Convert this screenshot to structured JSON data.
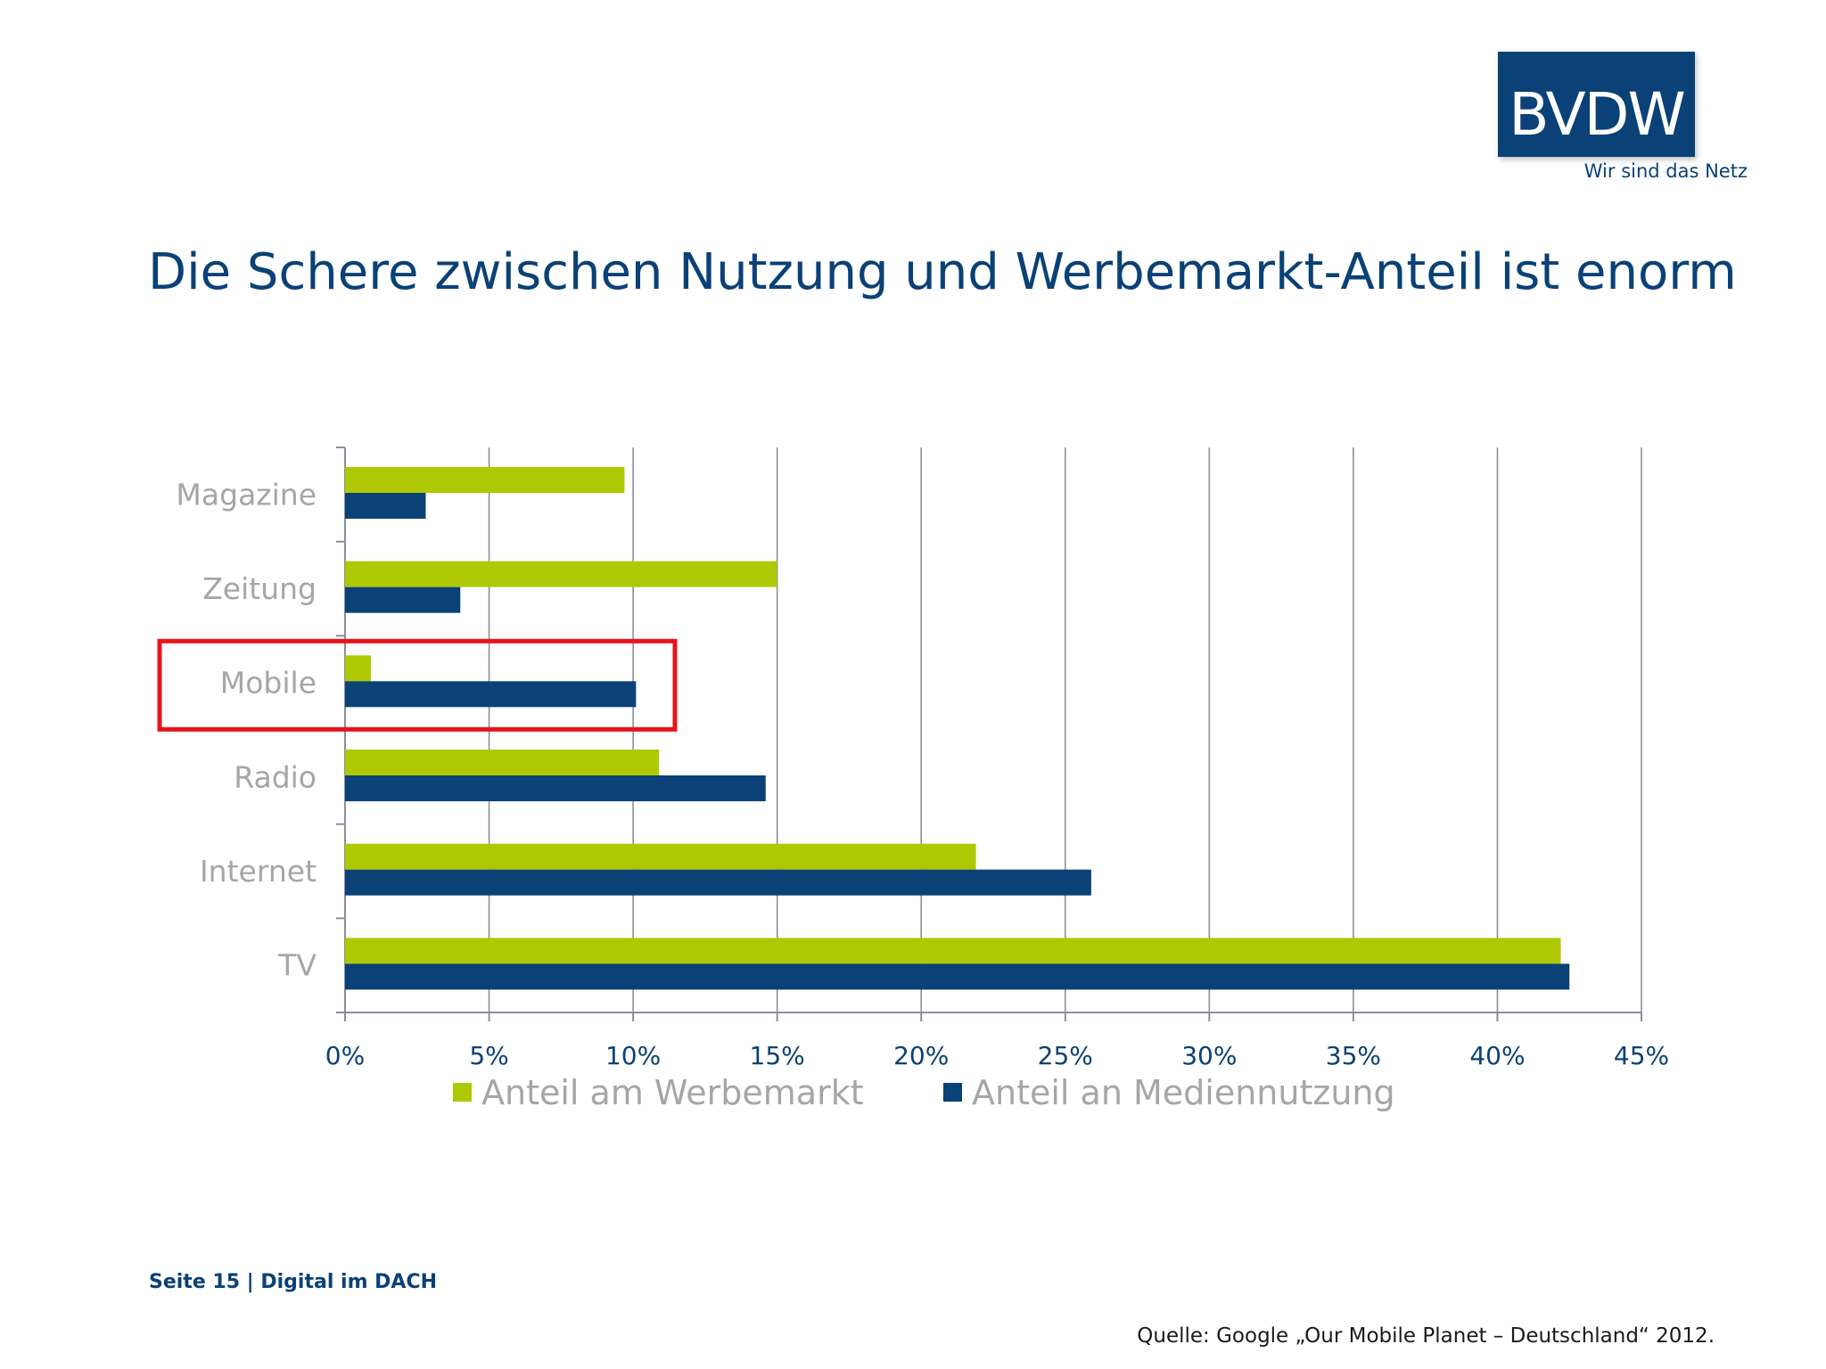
{
  "brand": {
    "logo_text": "BVDW",
    "tagline": "Wir sind das Netz",
    "color": "#0a4176"
  },
  "title": "Die Schere zwischen Nutzung und Werbemarkt-Anteil ist enorm",
  "footer": {
    "page_label": "Seite 15 | Digital im DACH",
    "source": "Quelle: Google „Our Mobile Planet – Deutschland“ 2012."
  },
  "highlight": {
    "category": "Mobile",
    "color": "#e8141b"
  },
  "chart_data": {
    "type": "bar",
    "orientation": "horizontal",
    "categories": [
      "Magazine",
      "Zeitung",
      "Mobile",
      "Radio",
      "Internet",
      "TV"
    ],
    "series": [
      {
        "name": "Anteil am Werbemarkt",
        "color": "#aec903",
        "values": [
          9.7,
          15.0,
          0.9,
          10.9,
          21.9,
          42.2
        ]
      },
      {
        "name": "Anteil an Mediennutzung",
        "color": "#0a4176",
        "values": [
          2.8,
          4.0,
          10.1,
          14.6,
          25.9,
          42.5
        ]
      }
    ],
    "xlim": [
      0,
      45
    ],
    "xticks": [
      "0%",
      "5%",
      "10%",
      "15%",
      "20%",
      "25%",
      "30%",
      "35%",
      "40%",
      "45%"
    ],
    "grid": true,
    "legend_position": "bottom",
    "tick_label_color": "#0a4176",
    "category_label_color": "#a6a6a6",
    "grid_color": "#8a8f9c"
  }
}
